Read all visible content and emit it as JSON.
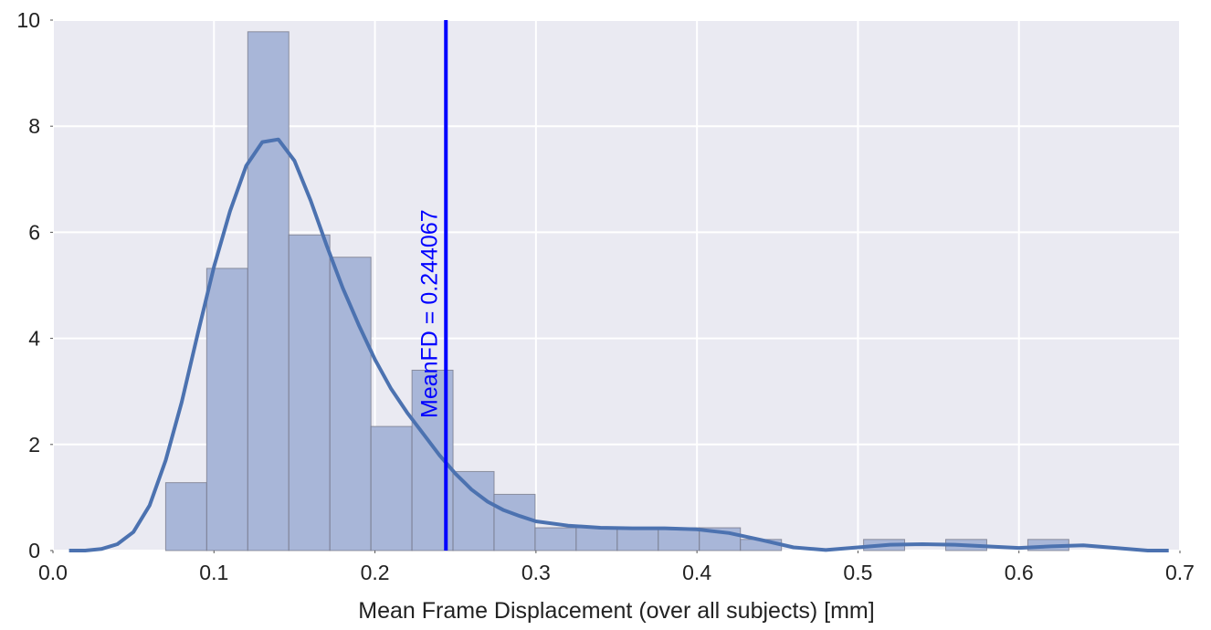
{
  "chart_data": {
    "type": "bar",
    "title": "",
    "xlabel": "Mean Frame Displacement (over all subjects) [mm]",
    "ylabel": "",
    "xlim": [
      0.0,
      0.7
    ],
    "ylim": [
      0,
      10
    ],
    "xticks": [
      0.0,
      0.1,
      0.2,
      0.3,
      0.4,
      0.5,
      0.6,
      0.7
    ],
    "xtick_labels": [
      "0.0",
      "0.1",
      "0.2",
      "0.3",
      "0.4",
      "0.5",
      "0.6",
      "0.7"
    ],
    "yticks": [
      0,
      2,
      4,
      6,
      8,
      10
    ],
    "ytick_labels": [
      "0",
      "2",
      "4",
      "6",
      "8",
      "10"
    ],
    "grid": true,
    "legend": "none",
    "histogram": {
      "bin_width": 0.0255,
      "bins": [
        {
          "left": 0.07,
          "value": 1.28
        },
        {
          "left": 0.0955,
          "value": 5.32
        },
        {
          "left": 0.121,
          "value": 9.78
        },
        {
          "left": 0.1465,
          "value": 5.95
        },
        {
          "left": 0.172,
          "value": 5.53
        },
        {
          "left": 0.1975,
          "value": 2.34
        },
        {
          "left": 0.223,
          "value": 3.4
        },
        {
          "left": 0.2485,
          "value": 1.49
        },
        {
          "left": 0.274,
          "value": 1.06
        },
        {
          "left": 0.2995,
          "value": 0.43
        },
        {
          "left": 0.325,
          "value": 0.43
        },
        {
          "left": 0.3505,
          "value": 0.43
        },
        {
          "left": 0.376,
          "value": 0.43
        },
        {
          "left": 0.4015,
          "value": 0.43
        },
        {
          "left": 0.427,
          "value": 0.21
        },
        {
          "left": 0.4525,
          "value": 0.0
        },
        {
          "left": 0.478,
          "value": 0.0
        },
        {
          "left": 0.5035,
          "value": 0.21
        },
        {
          "left": 0.529,
          "value": 0.0
        },
        {
          "left": 0.5545,
          "value": 0.21
        },
        {
          "left": 0.58,
          "value": 0.0
        },
        {
          "left": 0.6055,
          "value": 0.21
        }
      ]
    },
    "kde": {
      "x": [
        0.01,
        0.02,
        0.03,
        0.04,
        0.05,
        0.06,
        0.07,
        0.08,
        0.09,
        0.1,
        0.11,
        0.12,
        0.13,
        0.14,
        0.15,
        0.16,
        0.17,
        0.18,
        0.19,
        0.2,
        0.21,
        0.22,
        0.23,
        0.24,
        0.25,
        0.26,
        0.27,
        0.28,
        0.29,
        0.3,
        0.32,
        0.34,
        0.36,
        0.38,
        0.4,
        0.42,
        0.44,
        0.46,
        0.48,
        0.5,
        0.52,
        0.54,
        0.56,
        0.58,
        0.6,
        0.62,
        0.64,
        0.66,
        0.68,
        0.693
      ],
      "y": [
        0.0,
        0.0,
        0.03,
        0.12,
        0.35,
        0.85,
        1.7,
        2.8,
        4.1,
        5.35,
        6.4,
        7.25,
        7.7,
        7.75,
        7.35,
        6.6,
        5.75,
        4.95,
        4.25,
        3.6,
        3.05,
        2.6,
        2.2,
        1.8,
        1.45,
        1.15,
        0.92,
        0.76,
        0.65,
        0.55,
        0.47,
        0.43,
        0.42,
        0.42,
        0.4,
        0.33,
        0.2,
        0.06,
        0.01,
        0.06,
        0.11,
        0.12,
        0.11,
        0.08,
        0.05,
        0.08,
        0.1,
        0.05,
        0.0,
        0.0
      ]
    },
    "vline": {
      "x": 0.244067,
      "label": "MeanFD = 0.244067",
      "color": "#0000ff"
    },
    "colors": {
      "background": "#eaeaf2",
      "grid": "#ffffff",
      "bar_fill": "#a8b6d8",
      "bar_edge": "#6f7180",
      "kde_line": "#4c72b0",
      "text": "#222222"
    }
  }
}
